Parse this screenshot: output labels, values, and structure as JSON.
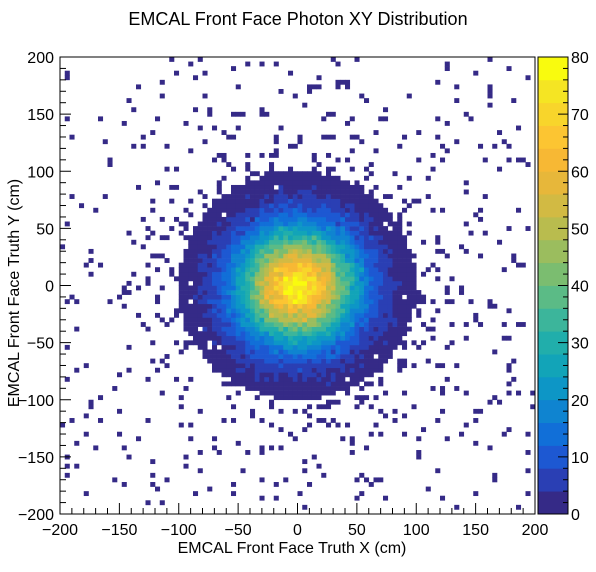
{
  "chart_data": {
    "type": "heatmap",
    "title": "EMCAL Front Face Photon XY Distribution",
    "xlabel": "EMCAL Front Face Truth X (cm)",
    "ylabel": "EMCAL Front Face Truth Y (cm)",
    "xlim": [
      -200,
      200
    ],
    "ylim": [
      -200,
      200
    ],
    "x_ticks": [
      -200,
      -150,
      -100,
      -50,
      0,
      50,
      100,
      150,
      200
    ],
    "y_ticks": [
      -200,
      -150,
      -100,
      -50,
      0,
      50,
      100,
      150,
      200
    ],
    "x_tick_labels": [
      "−200",
      "−150",
      "−100",
      "−50",
      "0",
      "50",
      "100",
      "150",
      "200"
    ],
    "y_tick_labels": [
      "−200",
      "−150",
      "−100",
      "−50",
      "0",
      "50",
      "100",
      "150",
      "200"
    ],
    "bin_width_cm": 4,
    "colorbar": {
      "range": [
        0,
        80
      ],
      "ticks": [
        0,
        10,
        20,
        30,
        40,
        50,
        60,
        70,
        80
      ],
      "tick_labels": [
        "0",
        "10",
        "20",
        "30",
        "40",
        "50",
        "60",
        "70",
        "80"
      ],
      "palette": [
        "#352a87",
        "#2a3fb4",
        "#1d58d2",
        "#116fd8",
        "#0f84d0",
        "#0d96c6",
        "#12a4b8",
        "#21aeab",
        "#3cb59b",
        "#5bbb86",
        "#7bbd70",
        "#9bbd5e",
        "#b9bc4e",
        "#d2ba43",
        "#e7b73a",
        "#f7b834",
        "#fcc532",
        "#f8d52b",
        "#f5e523",
        "#f9fb0e"
      ]
    },
    "distribution": {
      "shape": "2D Gaussian core centered at origin with sparse tail",
      "center": [
        0,
        0
      ],
      "core_sigma_cm": 32,
      "peak_bin_count": 72,
      "total_entries_estimate": 9000
    }
  }
}
